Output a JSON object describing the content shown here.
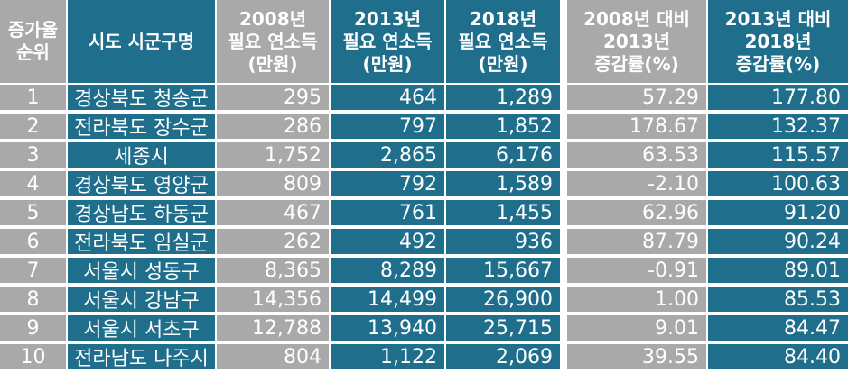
{
  "header": {
    "rank": [
      "증가율",
      "순위"
    ],
    "name": [
      "시도 시군구명"
    ],
    "v2008": [
      "2008년",
      "필요 연소득",
      "(만원)"
    ],
    "v2013": [
      "2013년",
      "필요 연소득",
      "(만원)"
    ],
    "v2018": [
      "2018년",
      "필요 연소득",
      "(만원)"
    ],
    "rate1": [
      "2008년 대비",
      "2013년",
      "증감률(%)"
    ],
    "rate2": [
      "2013년 대비",
      "2018년",
      "증감률(%)"
    ]
  },
  "rows": [
    {
      "rank": "1",
      "name": "경상북도 청송군",
      "v2008": "295",
      "v2013": "464",
      "v2018": "1,289",
      "rate1": "57.29",
      "rate2": "177.80"
    },
    {
      "rank": "2",
      "name": "전라북도 장수군",
      "v2008": "286",
      "v2013": "797",
      "v2018": "1,852",
      "rate1": "178.67",
      "rate2": "132.37"
    },
    {
      "rank": "3",
      "name": "세종시",
      "v2008": "1,752",
      "v2013": "2,865",
      "v2018": "6,176",
      "rate1": "63.53",
      "rate2": "115.57"
    },
    {
      "rank": "4",
      "name": "경상북도 영양군",
      "v2008": "809",
      "v2013": "792",
      "v2018": "1,589",
      "rate1": "-2.10",
      "rate2": "100.63"
    },
    {
      "rank": "5",
      "name": "경상남도 하동군",
      "v2008": "467",
      "v2013": "761",
      "v2018": "1,455",
      "rate1": "62.96",
      "rate2": "91.20"
    },
    {
      "rank": "6",
      "name": "전라북도 임실군",
      "v2008": "262",
      "v2013": "492",
      "v2018": "936",
      "rate1": "87.79",
      "rate2": "90.24"
    },
    {
      "rank": "7",
      "name": "서울시 성동구",
      "v2008": "8,365",
      "v2013": "8,289",
      "v2018": "15,667",
      "rate1": "-0.91",
      "rate2": "89.01"
    },
    {
      "rank": "8",
      "name": "서울시 강남구",
      "v2008": "14,356",
      "v2013": "14,499",
      "v2018": "26,900",
      "rate1": "1.00",
      "rate2": "85.53"
    },
    {
      "rank": "9",
      "name": "서울시 서초구",
      "v2008": "12,788",
      "v2013": "13,940",
      "v2018": "25,715",
      "rate1": "9.01",
      "rate2": "84.47"
    },
    {
      "rank": "10",
      "name": "전라남도 나주시",
      "v2008": "804",
      "v2013": "1,122",
      "v2018": "2,069",
      "rate1": "39.55",
      "rate2": "84.40"
    }
  ],
  "colors": {
    "teal": "#1f6f8c",
    "grey": "#a9a9a9"
  }
}
